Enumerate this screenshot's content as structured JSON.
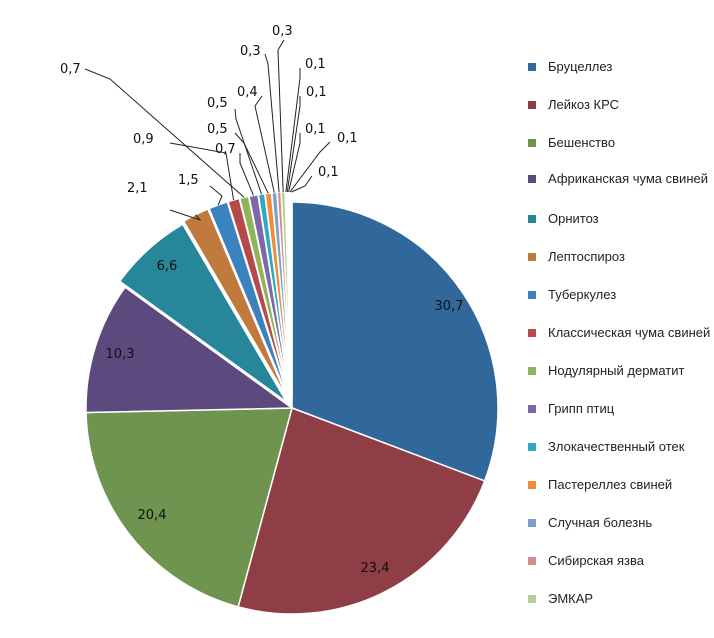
{
  "chart_data": {
    "type": "pie",
    "title": "",
    "series": [
      {
        "name": "Бруцеллез",
        "value": 30.7,
        "label": "30,7",
        "color": "#31689B"
      },
      {
        "name": "Лейкоз КРС",
        "value": 23.4,
        "label": "23,4",
        "color": "#8E3E44"
      },
      {
        "name": "Бешенство",
        "value": 20.4,
        "label": "20,4",
        "color": "#6F9450"
      },
      {
        "name": "Африканская чума свиней",
        "value": 10.3,
        "label": "10,3",
        "color": "#5C4A7E"
      },
      {
        "name": "Орнитоз",
        "value": 6.6,
        "label": "6,6",
        "color": "#27869A"
      },
      {
        "name": "Лептоспироз",
        "value": 2.1,
        "label": "2,1",
        "color": "#C07A3E"
      },
      {
        "name": "Туберкулез",
        "value": 1.5,
        "label": "1,5",
        "color": "#3B82C0"
      },
      {
        "name": "Классическая чума свиней",
        "value": 0.9,
        "label": "0,9",
        "color": "#B64A4A"
      },
      {
        "name": "Нодулярный дерматит",
        "value": 0.7,
        "label": "0,7",
        "color": "#8FB45A"
      },
      {
        "name": "Грипп птиц",
        "value": 0.7,
        "label": "0,7",
        "color": "#7E68A8"
      },
      {
        "name": "Злокачественный отек",
        "value": 0.5,
        "label": "0,5",
        "color": "#2BAAC2"
      },
      {
        "name": "Пастереллез свиней",
        "value": 0.5,
        "label": "0,5",
        "color": "#F08C3C"
      },
      {
        "name": "Случная болезнь",
        "value": 0.4,
        "label": "0,4",
        "color": "#7BA0D0"
      },
      {
        "name": "Сибирская язва",
        "value": 0.3,
        "label": "0,3",
        "color": "#D08C8C"
      },
      {
        "name": "ЭМКАР",
        "value": 0.3,
        "label": "0,3",
        "color": "#B5CF94"
      },
      {
        "name": "",
        "value": 0.1,
        "label": "0,1",
        "color": "#A594C8"
      },
      {
        "name": "",
        "value": 0.1,
        "label": "0,1",
        "color": "#7FC8D8"
      },
      {
        "name": "",
        "value": 0.1,
        "label": "0,1",
        "color": "#F5B985"
      },
      {
        "name": "",
        "value": 0.1,
        "label": "0,1",
        "color": "#B2C6E6"
      },
      {
        "name": "",
        "value": 0.1,
        "label": "0,1",
        "color": "#E5B5B5"
      }
    ]
  }
}
